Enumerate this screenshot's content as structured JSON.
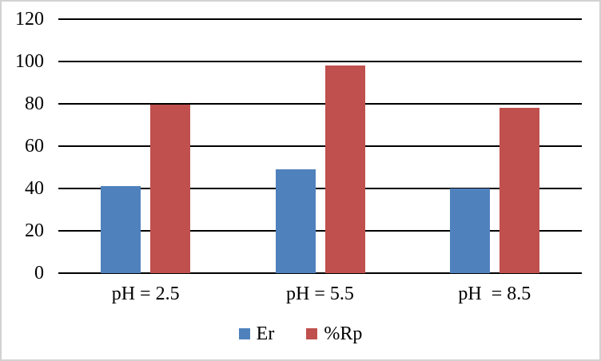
{
  "window": {
    "background_color": "#FFFFFF",
    "border_color": "#D2D2D2"
  },
  "chart_data": {
    "type": "bar",
    "title": "",
    "xlabel": "",
    "ylabel": "",
    "categories": [
      "pH = 2.5",
      "pH = 5.5",
      "pH  = 8.5"
    ],
    "series": [
      {
        "name": "Er",
        "color": "#4F81BD",
        "values": [
          41,
          49,
          40
        ]
      },
      {
        "name": "%Rp",
        "color": "#C0504D",
        "values": [
          79.5,
          98,
          78
        ]
      }
    ],
    "ylim": [
      0,
      120
    ],
    "yticks": [
      0,
      20,
      40,
      60,
      80,
      100,
      120
    ],
    "grid": true,
    "gridline_color": "#000000",
    "text_color": "#000000",
    "legend_position": "bottom"
  }
}
